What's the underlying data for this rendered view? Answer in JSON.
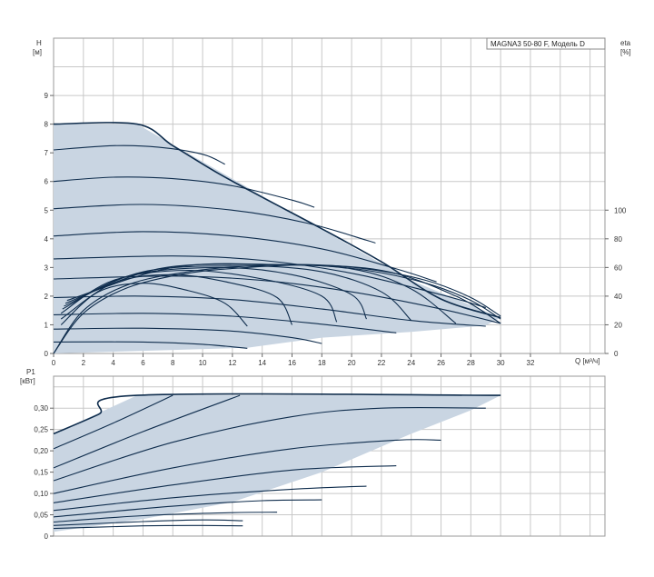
{
  "chart_data": [
    {
      "type": "line",
      "title": "MAGNA3 50-80 F, Модель D",
      "xlabel": "Q [м³/ч]",
      "ylabel_line1": "H",
      "ylabel_line2": "[м]",
      "y2label_line1": "eta",
      "y2label_line2": "[%]",
      "xlim": [
        0,
        37
      ],
      "ylim": [
        0,
        11
      ],
      "y2lim": [
        0,
        220
      ],
      "x_ticks": [
        "0",
        "2",
        "4",
        "6",
        "8",
        "10",
        "12",
        "14",
        "16",
        "18",
        "20",
        "22",
        "24",
        "26",
        "28",
        "30",
        "32"
      ],
      "y_ticks": [
        "0",
        "1",
        "2",
        "3",
        "4",
        "5",
        "6",
        "7",
        "8",
        "9"
      ],
      "y2_ticks": [
        "0",
        "20",
        "40",
        "60",
        "80",
        "100"
      ],
      "grid": true,
      "colors": {
        "curve": "#0f2d4d",
        "fill": "#c9d5e2",
        "grid": "#c8c8c8"
      },
      "envelope": [
        [
          0,
          8.0
        ],
        [
          5.6,
          8.0
        ],
        [
          14,
          5.5
        ],
        [
          24,
          2.55
        ],
        [
          30,
          1.25
        ],
        [
          29,
          0.98
        ],
        [
          24,
          0.75
        ],
        [
          18,
          0.55
        ],
        [
          13,
          0.2
        ],
        [
          0,
          0.0
        ]
      ],
      "series": [
        {
          "values": [
            [
              0,
              8.0
            ],
            [
              5.6,
              8.0
            ],
            [
              8,
              7.25
            ],
            [
              11,
              6.3
            ],
            [
              14,
              5.45
            ],
            [
              18,
              4.35
            ],
            [
              22,
              3.2
            ],
            [
              26,
              1.9
            ],
            [
              30,
              1.25
            ]
          ]
        },
        {
          "values": [
            [
              0,
              7.1
            ],
            [
              4,
              7.25
            ],
            [
              7,
              7.2
            ],
            [
              10,
              6.95
            ],
            [
              11.5,
              6.6
            ]
          ]
        },
        {
          "values": [
            [
              0,
              6.0
            ],
            [
              4,
              6.15
            ],
            [
              8,
              6.1
            ],
            [
              12,
              5.85
            ],
            [
              16,
              5.35
            ],
            [
              17.5,
              5.1
            ]
          ]
        },
        {
          "values": [
            [
              0,
              5.05
            ],
            [
              6,
              5.2
            ],
            [
              12,
              5.0
            ],
            [
              17,
              4.55
            ],
            [
              21,
              3.95
            ],
            [
              21.6,
              3.85
            ]
          ]
        },
        {
          "values": [
            [
              0,
              4.1
            ],
            [
              6,
              4.25
            ],
            [
              12,
              4.1
            ],
            [
              18,
              3.65
            ],
            [
              23,
              2.95
            ],
            [
              25.7,
              2.5
            ]
          ]
        },
        {
          "values": [
            [
              0,
              3.3
            ],
            [
              8,
              3.4
            ],
            [
              14,
              3.25
            ],
            [
              20,
              2.8
            ],
            [
              26,
              2.05
            ],
            [
              29,
              1.6
            ]
          ]
        },
        {
          "values": [
            [
              0,
              2.6
            ],
            [
              8,
              2.7
            ],
            [
              14,
              2.55
            ],
            [
              20,
              2.15
            ],
            [
              26,
              1.55
            ],
            [
              30,
              1.05
            ]
          ]
        },
        {
          "values": [
            [
              0,
              1.95
            ],
            [
              6,
              2.0
            ],
            [
              12,
              1.88
            ],
            [
              18,
              1.55
            ],
            [
              24,
              1.15
            ],
            [
              29,
              0.95
            ]
          ]
        },
        {
          "values": [
            [
              0,
              1.35
            ],
            [
              6,
              1.4
            ],
            [
              12,
              1.3
            ],
            [
              18,
              1.02
            ],
            [
              23,
              0.72
            ]
          ]
        },
        {
          "values": [
            [
              0,
              0.85
            ],
            [
              6,
              0.88
            ],
            [
              12,
              0.78
            ],
            [
              16,
              0.55
            ],
            [
              18,
              0.35
            ]
          ]
        },
        {
          "values": [
            [
              0,
              0.4
            ],
            [
              6,
              0.4
            ],
            [
              10,
              0.32
            ],
            [
              13,
              0.18
            ]
          ]
        },
        {
          "values": [
            [
              0.5,
              1.0
            ],
            [
              3,
              2.15
            ],
            [
              6,
              2.45
            ],
            [
              9,
              2.2
            ],
            [
              11.5,
              1.75
            ],
            [
              13,
              0.95
            ]
          ]
        },
        {
          "values": [
            [
              0.5,
              1.2
            ],
            [
              4,
              2.45
            ],
            [
              8,
              2.75
            ],
            [
              12,
              2.45
            ],
            [
              15,
              1.95
            ],
            [
              16,
              1.0
            ]
          ]
        },
        {
          "values": [
            [
              0.5,
              1.4
            ],
            [
              4,
              2.55
            ],
            [
              9,
              2.9
            ],
            [
              14,
              2.6
            ],
            [
              18,
              2.0
            ],
            [
              19,
              1.1
            ]
          ]
        },
        {
          "values": [
            [
              0.6,
              1.55
            ],
            [
              5,
              2.7
            ],
            [
              11,
              3.0
            ],
            [
              16,
              2.75
            ],
            [
              20,
              2.05
            ],
            [
              21,
              1.2
            ]
          ]
        },
        {
          "values": [
            [
              0.7,
              1.65
            ],
            [
              6,
              2.85
            ],
            [
              13,
              3.05
            ],
            [
              18,
              2.85
            ],
            [
              22,
              2.15
            ],
            [
              24,
              1.15
            ]
          ]
        },
        {
          "values": [
            [
              0.8,
              1.75
            ],
            [
              7,
              2.95
            ],
            [
              14,
              3.1
            ],
            [
              20,
              2.95
            ],
            [
              24,
              2.25
            ],
            [
              27,
              1.05
            ]
          ]
        },
        {
          "values": [
            [
              0.9,
              1.85
            ],
            [
              8,
              3.0
            ],
            [
              15,
              3.1
            ],
            [
              22,
              2.9
            ],
            [
              27,
              2.0
            ],
            [
              30,
              1.05
            ]
          ]
        },
        {
          "values": [
            [
              0,
              0.0
            ],
            [
              2,
              1.5
            ],
            [
              5,
              2.4
            ],
            [
              9,
              2.85
            ],
            [
              13,
              3.05
            ],
            [
              17,
              3.1
            ],
            [
              21,
              2.95
            ],
            [
              25,
              2.55
            ],
            [
              28,
              1.95
            ],
            [
              30,
              1.3
            ]
          ]
        },
        {
          "values": [
            [
              0,
              0.0
            ],
            [
              2,
              1.4
            ],
            [
              5,
              2.3
            ],
            [
              9,
              2.8
            ],
            [
              13,
              3.0
            ],
            [
              17,
              3.08
            ],
            [
              21,
              2.9
            ],
            [
              25,
              2.45
            ],
            [
              28,
              1.85
            ],
            [
              30,
              1.2
            ]
          ]
        }
      ]
    },
    {
      "type": "line",
      "xlabel": "",
      "ylabel_line1": "P1",
      "ylabel_line2": "[кВт]",
      "xlim": [
        0,
        37
      ],
      "ylim": [
        0,
        0.375
      ],
      "y_ticks": [
        "0",
        "0,05",
        "0,10",
        "0,15",
        "0,20",
        "0,25",
        "0,30"
      ],
      "grid": true,
      "colors": {
        "curve": "#0f2d4d",
        "fill": "#c9d5e2",
        "grid": "#c8c8c8"
      },
      "envelope": [
        [
          0,
          0.24
        ],
        [
          5.6,
          0.33
        ],
        [
          30,
          0.33
        ],
        [
          28,
          0.295
        ],
        [
          24,
          0.24
        ],
        [
          18,
          0.15
        ],
        [
          12,
          0.08
        ],
        [
          6,
          0.04
        ],
        [
          0,
          0.01
        ]
      ],
      "series": [
        {
          "values": [
            [
              0,
              0.24
            ],
            [
              3,
              0.285
            ],
            [
              5.6,
              0.33
            ],
            [
              30,
              0.33
            ]
          ]
        },
        {
          "values": [
            [
              0,
              0.205
            ],
            [
              4,
              0.265
            ],
            [
              8,
              0.33
            ]
          ]
        },
        {
          "values": [
            [
              0,
              0.16
            ],
            [
              6,
              0.245
            ],
            [
              12.5,
              0.33
            ]
          ]
        },
        {
          "values": [
            [
              0,
              0.13
            ],
            [
              8,
              0.22
            ],
            [
              16,
              0.28
            ],
            [
              22,
              0.3
            ],
            [
              29,
              0.3
            ]
          ]
        },
        {
          "values": [
            [
              0,
              0.1
            ],
            [
              8,
              0.16
            ],
            [
              16,
              0.205
            ],
            [
              23,
              0.225
            ],
            [
              26,
              0.225
            ]
          ]
        },
        {
          "values": [
            [
              0,
              0.078
            ],
            [
              8,
              0.12
            ],
            [
              16,
              0.155
            ],
            [
              23,
              0.165
            ]
          ]
        },
        {
          "values": [
            [
              0,
              0.06
            ],
            [
              8,
              0.09
            ],
            [
              16,
              0.11
            ],
            [
              21,
              0.117
            ]
          ]
        },
        {
          "values": [
            [
              0,
              0.045
            ],
            [
              8,
              0.07
            ],
            [
              14,
              0.083
            ],
            [
              18,
              0.085
            ]
          ]
        },
        {
          "values": [
            [
              0,
              0.033
            ],
            [
              6,
              0.048
            ],
            [
              12,
              0.055
            ],
            [
              15,
              0.056
            ]
          ]
        },
        {
          "values": [
            [
              0,
              0.025
            ],
            [
              6,
              0.034
            ],
            [
              10,
              0.038
            ],
            [
              12.7,
              0.036
            ]
          ]
        },
        {
          "values": [
            [
              0,
              0.018
            ],
            [
              6,
              0.024
            ],
            [
              10,
              0.025
            ],
            [
              12.7,
              0.024
            ]
          ]
        }
      ]
    }
  ]
}
